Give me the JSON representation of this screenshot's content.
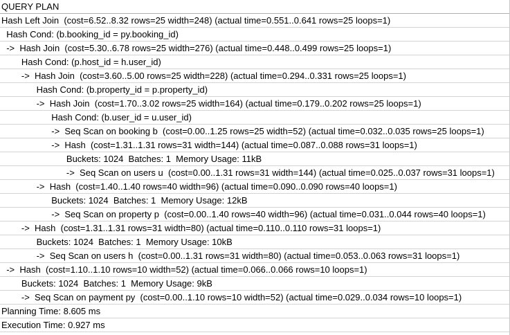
{
  "header": "QUERY PLAN",
  "rows": [
    {
      "text": "Hash Left Join  (cost=6.52..8.32 rows=25 width=248) (actual time=0.551..0.641 rows=25 loops=1)",
      "indent": 0
    },
    {
      "text": "  Hash Cond: (b.booking_id = py.booking_id)",
      "indent": 0
    },
    {
      "text": "  ->  Hash Join  (cost=5.30..6.78 rows=25 width=276) (actual time=0.448..0.499 rows=25 loops=1)",
      "indent": 0
    },
    {
      "text": "        Hash Cond: (p.host_id = h.user_id)",
      "indent": 0
    },
    {
      "text": "        ->  Hash Join  (cost=3.60..5.00 rows=25 width=228) (actual time=0.294..0.331 rows=25 loops=1)",
      "indent": 0
    },
    {
      "text": "              Hash Cond: (b.property_id = p.property_id)",
      "indent": 0
    },
    {
      "text": "              ->  Hash Join  (cost=1.70..3.02 rows=25 width=164) (actual time=0.179..0.202 rows=25 loops=1)",
      "indent": 0
    },
    {
      "text": "                    Hash Cond: (b.user_id = u.user_id)",
      "indent": 0
    },
    {
      "text": "                    ->  Seq Scan on booking b  (cost=0.00..1.25 rows=25 width=52) (actual time=0.032..0.035 rows=25 loops=1)",
      "indent": 0
    },
    {
      "text": "                    ->  Hash  (cost=1.31..1.31 rows=31 width=144) (actual time=0.087..0.088 rows=31 loops=1)",
      "indent": 0
    },
    {
      "text": "                          Buckets: 1024  Batches: 1  Memory Usage: 11kB",
      "indent": 0
    },
    {
      "text": "                          ->  Seq Scan on users u  (cost=0.00..1.31 rows=31 width=144) (actual time=0.025..0.037 rows=31 loops=1)",
      "indent": 0
    },
    {
      "text": "              ->  Hash  (cost=1.40..1.40 rows=40 width=96) (actual time=0.090..0.090 rows=40 loops=1)",
      "indent": 0
    },
    {
      "text": "                    Buckets: 1024  Batches: 1  Memory Usage: 12kB",
      "indent": 0
    },
    {
      "text": "                    ->  Seq Scan on property p  (cost=0.00..1.40 rows=40 width=96) (actual time=0.031..0.044 rows=40 loops=1)",
      "indent": 0
    },
    {
      "text": "        ->  Hash  (cost=1.31..1.31 rows=31 width=80) (actual time=0.110..0.110 rows=31 loops=1)",
      "indent": 0
    },
    {
      "text": "              Buckets: 1024  Batches: 1  Memory Usage: 10kB",
      "indent": 0
    },
    {
      "text": "              ->  Seq Scan on users h  (cost=0.00..1.31 rows=31 width=80) (actual time=0.053..0.063 rows=31 loops=1)",
      "indent": 0
    },
    {
      "text": "  ->  Hash  (cost=1.10..1.10 rows=10 width=52) (actual time=0.066..0.066 rows=10 loops=1)",
      "indent": 0
    },
    {
      "text": "        Buckets: 1024  Batches: 1  Memory Usage: 9kB",
      "indent": 0
    },
    {
      "text": "        ->  Seq Scan on payment py  (cost=0.00..1.10 rows=10 width=52) (actual time=0.029..0.034 rows=10 loops=1)",
      "indent": 0
    },
    {
      "text": "Planning Time: 8.605 ms",
      "indent": 0
    },
    {
      "text": "Execution Time: 0.927 ms",
      "indent": 0
    }
  ]
}
